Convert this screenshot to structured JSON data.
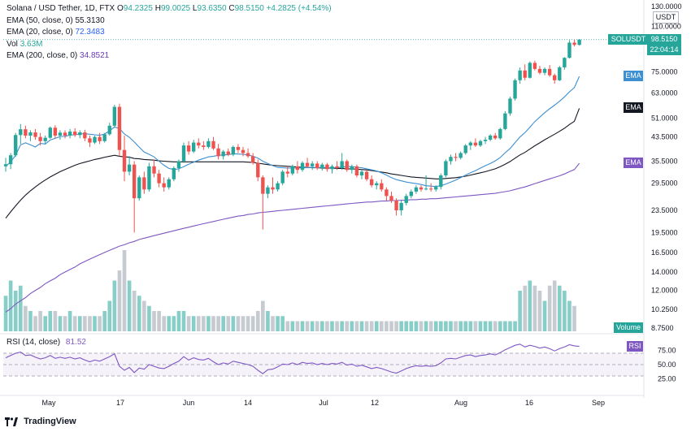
{
  "legend": {
    "symbol": "Solana / USD Tether, 1D, FTX",
    "o_label": "O",
    "o": "94.2325",
    "h_label": "H",
    "h": "99.0025",
    "l_label": "L",
    "l": "93.6350",
    "c_label": "C",
    "c": "98.5150",
    "change": "+4.2825 (+4.54%)",
    "ema50_label": "EMA (50, close, 0)",
    "ema50": "55.3130",
    "ema20_label": "EMA (20, close, 0)",
    "ema20": "72.3483",
    "vol_label": "Vol",
    "vol": "3.63M",
    "ema200_label": "EMA (200, close, 0)",
    "ema200": "34.8521"
  },
  "rsi_legend": {
    "label": "RSI (14, close)",
    "value": "81.52"
  },
  "axis_tags": {
    "currency": "USDT",
    "symbol": "SOLUSDT",
    "last_price": "98.5150",
    "countdown": "22:04:14",
    "ema_blue": "EMA",
    "ema_black": "EMA",
    "ema_purple": "EMA",
    "volume": "Volume",
    "rsi": "RSI"
  },
  "footer": {
    "brand": "TradingView"
  },
  "colors": {
    "up": "#26a69a",
    "down": "#ef5350",
    "ema20": "#3c8fd1",
    "ema50": "#131722",
    "ema200": "#7e57c2",
    "rsi": "#7e57c2",
    "vol_up": "#26a69a",
    "vol_neutral": "#c0c4cc"
  },
  "chart_data": {
    "type": "candlestick",
    "title": "Solana / USD Tether, 1D, FTX",
    "y_scale": "log",
    "price_ticks": [
      "130.0000",
      "110.0000",
      "75.0000",
      "63.0000",
      "51.0000",
      "43.5000",
      "35.5000",
      "29.5000",
      "23.5000",
      "19.5000",
      "16.5000",
      "14.0000",
      "12.0000",
      "10.2500",
      "8.7500"
    ],
    "rsi_ticks": [
      "75.00",
      "50.00",
      "25.00"
    ],
    "x_ticks": [
      "May",
      "17",
      "Jun",
      "14",
      "Jul",
      "12",
      "Aug",
      "16",
      "Sep"
    ],
    "ylim": [
      8.75,
      130
    ],
    "candles": [
      {
        "o": 34.0,
        "h": 36.5,
        "l": 32.5,
        "c": 34.6
      },
      {
        "o": 34.6,
        "h": 38.0,
        "l": 33.2,
        "c": 37.3
      },
      {
        "o": 37.3,
        "h": 45.0,
        "l": 36.8,
        "c": 44.2
      },
      {
        "o": 44.2,
        "h": 48.5,
        "l": 41.0,
        "c": 46.4
      },
      {
        "o": 46.4,
        "h": 47.8,
        "l": 43.0,
        "c": 44.0
      },
      {
        "o": 44.0,
        "h": 46.0,
        "l": 42.0,
        "c": 45.2
      },
      {
        "o": 45.2,
        "h": 46.5,
        "l": 42.5,
        "c": 43.5
      },
      {
        "o": 43.5,
        "h": 45.0,
        "l": 40.5,
        "c": 42.0
      },
      {
        "o": 42.0,
        "h": 44.0,
        "l": 40.8,
        "c": 43.2
      },
      {
        "o": 43.2,
        "h": 47.5,
        "l": 42.8,
        "c": 47.0
      },
      {
        "o": 47.0,
        "h": 48.0,
        "l": 43.0,
        "c": 44.0
      },
      {
        "o": 44.0,
        "h": 46.0,
        "l": 42.5,
        "c": 45.1
      },
      {
        "o": 45.1,
        "h": 46.0,
        "l": 43.0,
        "c": 44.0
      },
      {
        "o": 44.0,
        "h": 46.5,
        "l": 43.0,
        "c": 45.5
      },
      {
        "o": 45.5,
        "h": 46.8,
        "l": 43.5,
        "c": 44.2
      },
      {
        "o": 44.2,
        "h": 46.0,
        "l": 43.0,
        "c": 45.2
      },
      {
        "o": 45.2,
        "h": 46.2,
        "l": 42.0,
        "c": 43.0
      },
      {
        "o": 43.0,
        "h": 44.0,
        "l": 40.0,
        "c": 41.5
      },
      {
        "o": 41.5,
        "h": 44.0,
        "l": 41.0,
        "c": 43.5
      },
      {
        "o": 43.5,
        "h": 45.0,
        "l": 41.0,
        "c": 42.0
      },
      {
        "o": 42.0,
        "h": 45.0,
        "l": 41.5,
        "c": 44.5
      },
      {
        "o": 44.5,
        "h": 49.0,
        "l": 44.0,
        "c": 47.8
      },
      {
        "o": 47.8,
        "h": 57.0,
        "l": 47.0,
        "c": 56.0
      },
      {
        "o": 56.0,
        "h": 57.5,
        "l": 37.0,
        "c": 39.0
      },
      {
        "o": 39.0,
        "h": 44.0,
        "l": 30.0,
        "c": 32.5
      },
      {
        "o": 32.5,
        "h": 37.0,
        "l": 31.5,
        "c": 34.5
      },
      {
        "o": 34.5,
        "h": 35.5,
        "l": 19.5,
        "c": 26.0
      },
      {
        "o": 26.0,
        "h": 31.5,
        "l": 25.5,
        "c": 31.0
      },
      {
        "o": 31.0,
        "h": 32.5,
        "l": 27.0,
        "c": 28.0
      },
      {
        "o": 28.0,
        "h": 35.0,
        "l": 27.5,
        "c": 34.0
      },
      {
        "o": 34.0,
        "h": 36.0,
        "l": 31.0,
        "c": 32.0
      },
      {
        "o": 32.0,
        "h": 33.0,
        "l": 28.5,
        "c": 29.5
      },
      {
        "o": 29.5,
        "h": 31.0,
        "l": 27.5,
        "c": 28.5
      },
      {
        "o": 28.5,
        "h": 31.0,
        "l": 28.0,
        "c": 30.5
      },
      {
        "o": 30.5,
        "h": 34.0,
        "l": 30.0,
        "c": 33.5
      },
      {
        "o": 33.5,
        "h": 36.0,
        "l": 32.5,
        "c": 35.5
      },
      {
        "o": 35.5,
        "h": 41.5,
        "l": 35.0,
        "c": 40.5
      },
      {
        "o": 40.5,
        "h": 42.0,
        "l": 37.5,
        "c": 38.5
      },
      {
        "o": 38.5,
        "h": 42.5,
        "l": 38.0,
        "c": 41.5
      },
      {
        "o": 41.5,
        "h": 43.0,
        "l": 39.5,
        "c": 40.5
      },
      {
        "o": 40.5,
        "h": 42.0,
        "l": 39.0,
        "c": 40.0
      },
      {
        "o": 40.0,
        "h": 43.0,
        "l": 39.5,
        "c": 42.0
      },
      {
        "o": 42.0,
        "h": 43.5,
        "l": 39.0,
        "c": 39.5
      },
      {
        "o": 39.5,
        "h": 41.0,
        "l": 36.0,
        "c": 37.0
      },
      {
        "o": 37.0,
        "h": 39.0,
        "l": 36.0,
        "c": 38.5
      },
      {
        "o": 38.5,
        "h": 39.5,
        "l": 37.0,
        "c": 37.5
      },
      {
        "o": 37.5,
        "h": 40.5,
        "l": 37.0,
        "c": 40.0
      },
      {
        "o": 40.0,
        "h": 41.0,
        "l": 38.0,
        "c": 39.0
      },
      {
        "o": 39.0,
        "h": 40.0,
        "l": 37.0,
        "c": 38.0
      },
      {
        "o": 38.0,
        "h": 39.5,
        "l": 36.5,
        "c": 37.0
      },
      {
        "o": 37.0,
        "h": 38.0,
        "l": 34.5,
        "c": 35.0
      },
      {
        "o": 35.0,
        "h": 36.0,
        "l": 30.0,
        "c": 31.0
      },
      {
        "o": 31.0,
        "h": 31.5,
        "l": 20.0,
        "c": 27.0
      },
      {
        "o": 27.0,
        "h": 29.0,
        "l": 26.0,
        "c": 28.5
      },
      {
        "o": 28.5,
        "h": 31.0,
        "l": 27.0,
        "c": 28.0
      },
      {
        "o": 28.0,
        "h": 30.0,
        "l": 27.5,
        "c": 29.5
      },
      {
        "o": 29.5,
        "h": 33.0,
        "l": 29.0,
        "c": 32.5
      },
      {
        "o": 32.5,
        "h": 34.0,
        "l": 31.0,
        "c": 32.0
      },
      {
        "o": 32.0,
        "h": 34.5,
        "l": 31.5,
        "c": 34.0
      },
      {
        "o": 34.0,
        "h": 35.5,
        "l": 32.0,
        "c": 33.0
      },
      {
        "o": 33.0,
        "h": 35.5,
        "l": 32.5,
        "c": 35.0
      },
      {
        "o": 35.0,
        "h": 36.5,
        "l": 33.5,
        "c": 34.0
      },
      {
        "o": 34.0,
        "h": 35.5,
        "l": 33.0,
        "c": 34.8
      },
      {
        "o": 34.8,
        "h": 35.5,
        "l": 33.0,
        "c": 33.5
      },
      {
        "o": 33.5,
        "h": 35.0,
        "l": 32.8,
        "c": 34.5
      },
      {
        "o": 34.5,
        "h": 35.0,
        "l": 32.5,
        "c": 33.2
      },
      {
        "o": 33.2,
        "h": 34.5,
        "l": 32.0,
        "c": 34.0
      },
      {
        "o": 34.0,
        "h": 35.5,
        "l": 33.0,
        "c": 33.5
      },
      {
        "o": 33.5,
        "h": 38.0,
        "l": 33.0,
        "c": 35.5
      },
      {
        "o": 35.5,
        "h": 36.0,
        "l": 32.5,
        "c": 33.0
      },
      {
        "o": 33.0,
        "h": 34.5,
        "l": 32.0,
        "c": 34.0
      },
      {
        "o": 34.0,
        "h": 34.5,
        "l": 31.0,
        "c": 31.5
      },
      {
        "o": 31.5,
        "h": 33.0,
        "l": 30.5,
        "c": 32.5
      },
      {
        "o": 32.5,
        "h": 33.0,
        "l": 30.0,
        "c": 30.5
      },
      {
        "o": 30.5,
        "h": 31.5,
        "l": 28.5,
        "c": 29.0
      },
      {
        "o": 29.0,
        "h": 30.0,
        "l": 28.0,
        "c": 29.5
      },
      {
        "o": 29.5,
        "h": 30.5,
        "l": 27.5,
        "c": 28.0
      },
      {
        "o": 28.0,
        "h": 28.5,
        "l": 25.5,
        "c": 26.5
      },
      {
        "o": 26.5,
        "h": 27.5,
        "l": 25.0,
        "c": 25.5
      },
      {
        "o": 25.5,
        "h": 26.0,
        "l": 22.5,
        "c": 23.5
      },
      {
        "o": 23.5,
        "h": 25.5,
        "l": 22.5,
        "c": 25.0
      },
      {
        "o": 25.0,
        "h": 27.0,
        "l": 24.5,
        "c": 26.5
      },
      {
        "o": 26.5,
        "h": 28.0,
        "l": 26.0,
        "c": 27.5
      },
      {
        "o": 27.5,
        "h": 29.0,
        "l": 27.0,
        "c": 28.5
      },
      {
        "o": 28.5,
        "h": 29.0,
        "l": 27.5,
        "c": 28.0
      },
      {
        "o": 28.0,
        "h": 31.5,
        "l": 27.8,
        "c": 28.2
      },
      {
        "o": 28.2,
        "h": 29.5,
        "l": 27.5,
        "c": 28.0
      },
      {
        "o": 28.0,
        "h": 29.0,
        "l": 27.5,
        "c": 28.6
      },
      {
        "o": 28.6,
        "h": 32.0,
        "l": 28.0,
        "c": 31.5
      },
      {
        "o": 31.5,
        "h": 36.0,
        "l": 31.0,
        "c": 35.5
      },
      {
        "o": 35.5,
        "h": 37.5,
        "l": 34.5,
        "c": 36.8
      },
      {
        "o": 36.8,
        "h": 38.0,
        "l": 35.5,
        "c": 36.5
      },
      {
        "o": 36.5,
        "h": 38.5,
        "l": 36.0,
        "c": 38.0
      },
      {
        "o": 38.0,
        "h": 41.0,
        "l": 37.5,
        "c": 40.5
      },
      {
        "o": 40.5,
        "h": 42.0,
        "l": 39.0,
        "c": 41.5
      },
      {
        "o": 41.5,
        "h": 43.0,
        "l": 40.0,
        "c": 40.5
      },
      {
        "o": 40.5,
        "h": 42.5,
        "l": 40.0,
        "c": 42.0
      },
      {
        "o": 42.0,
        "h": 43.5,
        "l": 41.0,
        "c": 42.5
      },
      {
        "o": 42.5,
        "h": 44.5,
        "l": 42.0,
        "c": 44.0
      },
      {
        "o": 44.0,
        "h": 45.0,
        "l": 42.5,
        "c": 43.0
      },
      {
        "o": 43.0,
        "h": 47.0,
        "l": 42.5,
        "c": 46.5
      },
      {
        "o": 46.5,
        "h": 54.0,
        "l": 46.0,
        "c": 53.0
      },
      {
        "o": 53.0,
        "h": 61.0,
        "l": 52.0,
        "c": 60.0
      },
      {
        "o": 60.0,
        "h": 71.0,
        "l": 59.0,
        "c": 70.0
      },
      {
        "o": 70.0,
        "h": 78.0,
        "l": 68.0,
        "c": 76.0
      },
      {
        "o": 76.0,
        "h": 80.0,
        "l": 70.0,
        "c": 71.5
      },
      {
        "o": 71.5,
        "h": 82.0,
        "l": 71.0,
        "c": 81.0
      },
      {
        "o": 81.0,
        "h": 82.5,
        "l": 76.0,
        "c": 77.0
      },
      {
        "o": 77.0,
        "h": 79.0,
        "l": 73.5,
        "c": 74.5
      },
      {
        "o": 74.5,
        "h": 78.0,
        "l": 73.0,
        "c": 77.0
      },
      {
        "o": 77.0,
        "h": 79.5,
        "l": 72.0,
        "c": 73.0
      },
      {
        "o": 73.0,
        "h": 74.0,
        "l": 68.0,
        "c": 70.0
      },
      {
        "o": 70.0,
        "h": 79.0,
        "l": 69.5,
        "c": 78.0
      },
      {
        "o": 78.0,
        "h": 85.0,
        "l": 76.5,
        "c": 84.5
      },
      {
        "o": 84.5,
        "h": 98.0,
        "l": 84.0,
        "c": 96.0
      },
      {
        "o": 96.0,
        "h": 98.5,
        "l": 93.0,
        "c": 94.2
      },
      {
        "o": 94.2,
        "h": 99.0,
        "l": 93.6,
        "c": 98.5
      }
    ],
    "ema20": [
      34.0,
      35.3,
      37.3,
      40.7,
      41.4,
      40.7,
      40.0,
      41.2,
      41.0,
      42.4,
      43.0,
      43.7,
      43.7,
      44.2,
      44.3,
      44.6,
      44.7,
      44.5,
      44.3,
      44.1,
      44.6,
      45.8,
      47.3,
      46.7,
      44.6,
      43.4,
      41.7,
      39.9,
      38.3,
      37.6,
      36.8,
      35.5,
      34.3,
      33.4,
      33.1,
      33.3,
      33.9,
      34.6,
      35.2,
      35.8,
      36.3,
      36.8,
      37.0,
      37.3,
      37.4,
      37.5,
      37.8,
      37.7,
      37.6,
      37.4,
      37.0,
      36.4,
      35.5,
      34.8,
      34.2,
      33.7,
      33.6,
      33.5,
      33.5,
      33.5,
      33.6,
      33.6,
      33.7,
      33.6,
      33.7,
      33.6,
      33.6,
      33.6,
      33.8,
      33.9,
      33.9,
      33.7,
      33.6,
      33.3,
      33.0,
      32.7,
      32.2,
      31.6,
      30.9,
      30.4,
      30.1,
      29.8,
      29.6,
      29.4,
      29.2,
      28.9,
      28.8,
      28.7,
      28.9,
      29.3,
      29.8,
      30.3,
      30.9,
      31.6,
      32.2,
      32.8,
      33.5,
      34.2,
      34.8,
      35.6,
      36.6,
      38.1,
      39.5,
      41.5,
      43.5,
      45.1,
      47.2,
      49.5,
      51.4,
      53.3,
      55.1,
      56.8,
      58.7,
      60.9,
      63.5,
      65.8,
      72.3
    ],
    "ema50": [
      22.0,
      23.2,
      24.4,
      25.6,
      26.7,
      27.7,
      28.6,
      29.5,
      30.3,
      31.1,
      31.8,
      32.5,
      33.1,
      33.7,
      34.3,
      34.8,
      35.2,
      35.6,
      36.0,
      36.3,
      36.7,
      37.0,
      37.3,
      37.0,
      36.8,
      36.7,
      36.3,
      36.2,
      36.0,
      35.9,
      35.8,
      35.6,
      35.5,
      35.4,
      35.3,
      35.3,
      35.3,
      35.3,
      35.3,
      35.3,
      35.3,
      35.3,
      35.3,
      35.3,
      35.3,
      35.3,
      35.3,
      35.3,
      35.3,
      35.2,
      35.1,
      34.9,
      34.7,
      34.5,
      34.3,
      34.2,
      34.1,
      34.0,
      33.9,
      33.8,
      33.7,
      33.7,
      33.6,
      33.6,
      33.5,
      33.5,
      33.5,
      33.4,
      33.4,
      33.3,
      33.3,
      33.2,
      33.1,
      33.0,
      32.8,
      32.6,
      32.4,
      32.2,
      31.9,
      31.7,
      31.5,
      31.3,
      31.1,
      31.0,
      30.9,
      30.8,
      30.7,
      30.6,
      30.6,
      30.7,
      30.8,
      30.9,
      31.1,
      31.3,
      31.6,
      31.9,
      32.2,
      32.5,
      32.9,
      33.3,
      33.9,
      34.6,
      35.4,
      36.4,
      37.4,
      38.2,
      39.3,
      40.4,
      41.4,
      42.5,
      43.5,
      44.5,
      45.6,
      46.8,
      48.3,
      49.6,
      55.3
    ],
    "ema200": [
      10.0,
      10.3,
      10.7,
      11.0,
      11.3,
      11.7,
      12.0,
      12.3,
      12.7,
      13.0,
      13.3,
      13.7,
      14.0,
      14.3,
      14.6,
      15.0,
      15.3,
      15.6,
      15.9,
      16.2,
      16.5,
      16.8,
      17.1,
      17.4,
      17.6,
      17.9,
      18.1,
      18.4,
      18.6,
      18.8,
      19.0,
      19.2,
      19.4,
      19.6,
      19.8,
      20.0,
      20.2,
      20.4,
      20.6,
      20.8,
      21.0,
      21.2,
      21.4,
      21.6,
      21.8,
      22.0,
      22.2,
      22.4,
      22.5,
      22.7,
      22.8,
      23.0,
      23.1,
      23.2,
      23.3,
      23.4,
      23.5,
      23.6,
      23.7,
      23.8,
      23.9,
      24.0,
      24.1,
      24.2,
      24.3,
      24.4,
      24.5,
      24.6,
      24.7,
      24.8,
      24.9,
      25.0,
      25.1,
      25.2,
      25.2,
      25.3,
      25.4,
      25.4,
      25.5,
      25.5,
      25.6,
      25.6,
      25.7,
      25.7,
      25.8,
      25.8,
      25.9,
      25.9,
      26.0,
      26.1,
      26.2,
      26.3,
      26.4,
      26.5,
      26.6,
      26.7,
      26.8,
      26.9,
      27.0,
      27.1,
      27.3,
      27.5,
      27.7,
      28.0,
      28.3,
      28.6,
      29.0,
      29.4,
      29.8,
      30.2,
      30.6,
      31.0,
      31.4,
      31.9,
      32.5,
      33.1,
      34.85
    ],
    "volume": [
      7,
      10,
      8,
      9,
      5,
      4,
      3,
      4,
      3,
      4,
      4,
      3,
      3,
      4,
      3,
      3,
      3,
      3,
      3,
      3,
      4,
      6,
      10,
      12,
      16,
      10,
      8,
      7,
      6,
      5,
      4,
      4,
      3,
      3,
      3,
      4,
      4,
      3,
      3,
      3,
      3,
      3,
      3,
      3,
      3,
      3,
      3,
      3,
      3,
      3,
      3,
      4,
      6,
      4,
      3,
      3,
      3,
      2,
      2,
      2,
      2,
      2,
      2,
      2,
      2,
      2,
      2,
      2,
      2,
      2,
      2,
      2,
      2,
      2,
      2,
      2,
      2,
      2,
      2,
      2,
      2,
      2,
      2,
      2,
      2,
      2,
      2,
      2,
      2,
      2,
      2,
      2,
      2,
      2,
      2,
      2,
      2,
      2,
      2,
      2,
      2,
      2,
      2,
      2,
      8,
      9,
      10,
      9,
      8,
      6,
      9,
      10,
      9,
      8,
      6,
      5
    ],
    "rsi": [
      62,
      66,
      70,
      72,
      66,
      67,
      63,
      60,
      62,
      66,
      61,
      63,
      61,
      63,
      60,
      62,
      58,
      55,
      58,
      56,
      60,
      64,
      69,
      47,
      40,
      45,
      36,
      44,
      42,
      50,
      47,
      44,
      43,
      47,
      52,
      56,
      64,
      58,
      62,
      59,
      58,
      61,
      55,
      50,
      53,
      51,
      56,
      54,
      52,
      50,
      47,
      40,
      34,
      41,
      42,
      46,
      51,
      50,
      53,
      50,
      54,
      52,
      53,
      50,
      52,
      50,
      52,
      51,
      54,
      49,
      51,
      47,
      49,
      46,
      43,
      45,
      43,
      40,
      37,
      35,
      39,
      43,
      46,
      48,
      47,
      48,
      47,
      48,
      53,
      60,
      61,
      60,
      63,
      66,
      67,
      64,
      66,
      67,
      69,
      67,
      71,
      76,
      80,
      84,
      86,
      81,
      84,
      82,
      79,
      81,
      78,
      74,
      78,
      81,
      85,
      83,
      82
    ]
  }
}
